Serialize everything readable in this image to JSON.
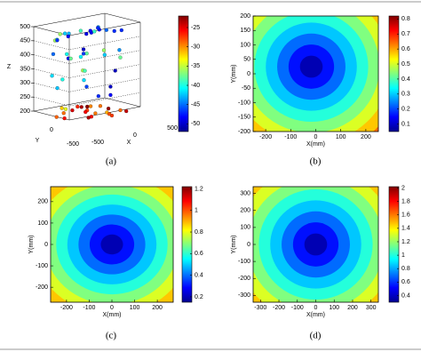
{
  "panels": [
    {
      "type": "scatter3d",
      "caption": "(a)",
      "x_label": "X",
      "y_label": "Y",
      "z_label": "Z",
      "xlim": [
        -500,
        500
      ],
      "xticks": [
        -500,
        0,
        500
      ],
      "ylim": [
        0,
        -500
      ],
      "yticks": [
        0,
        -500
      ],
      "zlim": [
        200,
        500
      ],
      "zticks": [
        200,
        250,
        300,
        350,
        400,
        450,
        500
      ],
      "cbar_lim": [
        -52,
        -22
      ],
      "cbar_ticks": [
        -25,
        -30,
        -35,
        -40,
        -45,
        -50
      ]
    },
    {
      "type": "contour",
      "caption": "(b)",
      "x_label": "X(mm)",
      "y_label": "Y(mm)",
      "xlim": [
        -250,
        250
      ],
      "xticks": [
        -200,
        -100,
        0,
        100,
        200
      ],
      "ylim": [
        -200,
        200
      ],
      "yticks": [
        -200,
        -150,
        -100,
        -50,
        0,
        50,
        100,
        150,
        200
      ],
      "cbar_lim": [
        0.05,
        0.82
      ],
      "cbar_ticks": [
        0.1,
        0.2,
        0.3,
        0.4,
        0.5,
        0.6,
        0.7,
        0.8
      ]
    },
    {
      "type": "contour",
      "caption": "(c)",
      "x_label": "X(mm)",
      "y_label": "Y(mm)",
      "xlim": [
        -270,
        270
      ],
      "xticks": [
        -200,
        -100,
        0,
        100,
        200
      ],
      "ylim": [
        -270,
        270
      ],
      "yticks": [
        -200,
        -100,
        0,
        100,
        200
      ],
      "cbar_lim": [
        0.15,
        1.22
      ],
      "cbar_ticks": [
        0.2,
        0.4,
        0.6,
        0.8,
        1,
        1.2
      ]
    },
    {
      "type": "contour",
      "caption": "(d)",
      "x_label": "X(mm)",
      "y_label": "Y(mm)",
      "xlim": [
        -340,
        340
      ],
      "xticks": [
        -300,
        -200,
        -100,
        0,
        100,
        200,
        300
      ],
      "ylim": [
        -340,
        340
      ],
      "yticks": [
        -300,
        -200,
        -100,
        0,
        100,
        200,
        300
      ],
      "cbar_lim": [
        0.3,
        2.02
      ],
      "cbar_ticks": [
        0.4,
        0.6,
        0.8,
        1,
        1.2,
        1.4,
        1.6,
        1.8,
        2
      ]
    }
  ]
}
